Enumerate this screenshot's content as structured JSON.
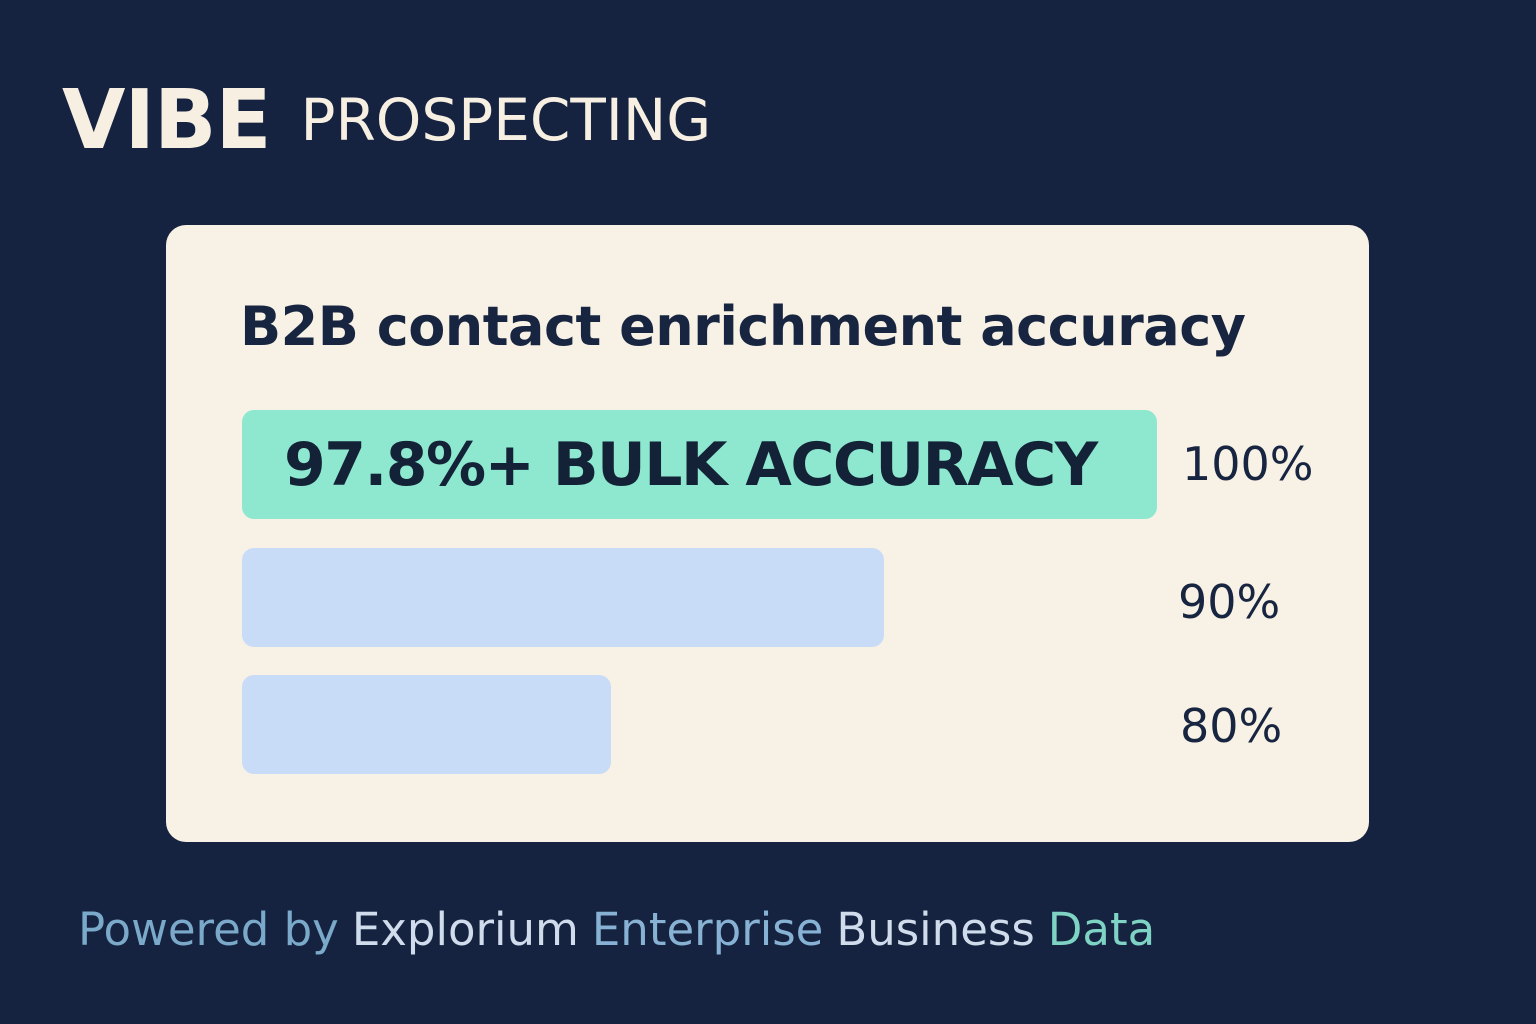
{
  "header": {
    "brand_primary": "VIBE",
    "brand_secondary": "PROSPECTING"
  },
  "footer": {
    "words": [
      {
        "text": "Powered by",
        "color": "#7aa9c9"
      },
      {
        "text": "Explorium",
        "color": "#d0dcec"
      },
      {
        "text": "Enterprise",
        "color": "#88b2d4"
      },
      {
        "text": "Business",
        "color": "#d0dcec"
      },
      {
        "text": "Data",
        "color": "#7ed3c4"
      }
    ]
  },
  "colors": {
    "background": "#152340",
    "card": "#f8f1e5",
    "highlight_bar": "#8de8cf",
    "bar": "#c8dcf8",
    "text_dark": "#172540"
  },
  "chart_data": {
    "type": "bar",
    "orientation": "horizontal",
    "title": "B2B contact enrichment accuracy",
    "bars": [
      {
        "label": "97.8%+ BULK ACCURACY",
        "value": 100,
        "tick": "100%",
        "highlight": true
      },
      {
        "label": "",
        "value": 90,
        "tick": "90%",
        "highlight": false
      },
      {
        "label": "",
        "value": 80,
        "tick": "80%",
        "highlight": false
      }
    ],
    "xlim": [
      66.5,
      100
    ],
    "grid": false,
    "legend": "none"
  }
}
